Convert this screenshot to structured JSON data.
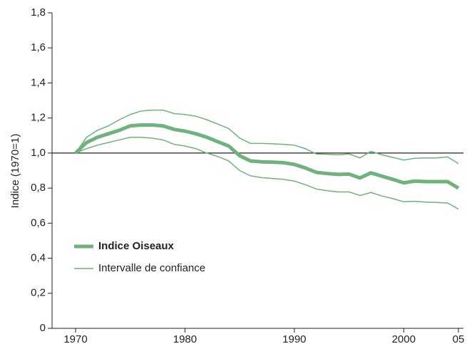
{
  "chart_data": {
    "type": "line",
    "ylabel": "Indice (1970=1)",
    "x": [
      1970,
      1971,
      1972,
      1973,
      1974,
      1975,
      1976,
      1977,
      1978,
      1979,
      1980,
      1981,
      1982,
      1983,
      1984,
      1985,
      1986,
      1987,
      1988,
      1989,
      1990,
      1991,
      1992,
      1993,
      1994,
      1995,
      1996,
      1997,
      1998,
      1999,
      2000,
      2001,
      2002,
      2003,
      2004,
      2005
    ],
    "series": [
      {
        "name": "Indice Oiseaux",
        "color": "#6db37b",
        "values": [
          1.0,
          1.06,
          1.09,
          1.11,
          1.13,
          1.155,
          1.16,
          1.16,
          1.155,
          1.135,
          1.125,
          1.11,
          1.09,
          1.065,
          1.04,
          0.985,
          0.955,
          0.95,
          0.948,
          0.945,
          0.935,
          0.915,
          0.89,
          0.883,
          0.878,
          0.88,
          0.858,
          0.887,
          0.868,
          0.85,
          0.83,
          0.84,
          0.837,
          0.837,
          0.837,
          0.8
        ]
      },
      {
        "name": "Intervalle de confiance",
        "color": "#6db37b",
        "upper": [
          1.0,
          1.09,
          1.13,
          1.155,
          1.19,
          1.22,
          1.24,
          1.245,
          1.245,
          1.225,
          1.22,
          1.21,
          1.19,
          1.165,
          1.14,
          1.085,
          1.055,
          1.055,
          1.053,
          1.05,
          1.045,
          1.025,
          0.995,
          0.993,
          0.99,
          0.995,
          0.972,
          1.01,
          0.99,
          0.975,
          0.96,
          0.97,
          0.972,
          0.972,
          0.978,
          0.94
        ],
        "lower": [
          1.0,
          1.025,
          1.045,
          1.06,
          1.075,
          1.09,
          1.09,
          1.085,
          1.075,
          1.05,
          1.04,
          1.025,
          1.0,
          0.98,
          0.955,
          0.9,
          0.87,
          0.86,
          0.855,
          0.85,
          0.84,
          0.82,
          0.795,
          0.785,
          0.778,
          0.778,
          0.758,
          0.775,
          0.755,
          0.74,
          0.722,
          0.725,
          0.72,
          0.718,
          0.715,
          0.68
        ]
      }
    ],
    "reference_line": 1,
    "xlim": [
      1970,
      2005
    ],
    "xticks": [
      1970,
      1980,
      1990,
      2000,
      {
        "value": 2005,
        "label": "05"
      }
    ],
    "ylim": [
      0,
      1.8
    ],
    "yticks": [
      0,
      {
        "value": 0.2,
        "label": "0,2"
      },
      {
        "value": 0.4,
        "label": "0,4"
      },
      {
        "value": 0.6,
        "label": "0,6"
      },
      {
        "value": 0.8,
        "label": "0,8"
      },
      {
        "value": 1.0,
        "label": "1,0"
      },
      {
        "value": 1.2,
        "label": "1,2"
      },
      {
        "value": 1.4,
        "label": "1,4"
      },
      {
        "value": 1.6,
        "label": "1,6"
      },
      {
        "value": 1.8,
        "label": "1,8"
      }
    ],
    "grid": false
  }
}
